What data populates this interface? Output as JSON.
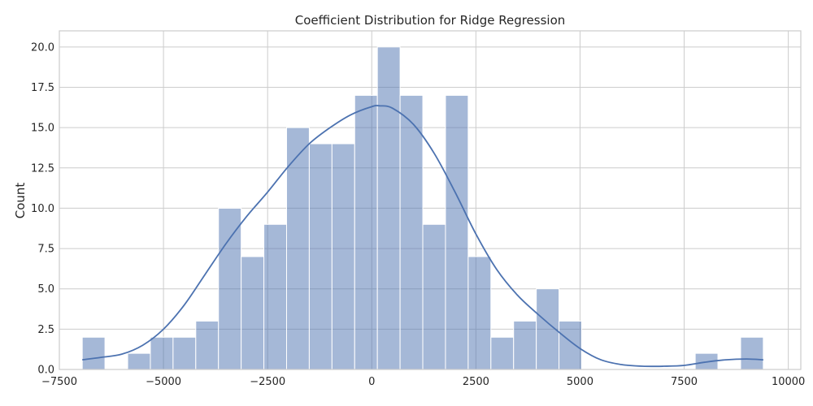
{
  "chart_data": {
    "type": "bar",
    "subtype": "histogram_with_kde",
    "title": "Coefficient Distribution for Ridge Regression",
    "xlabel": "",
    "ylabel": "Count",
    "xlim": [
      -7500,
      10300
    ],
    "ylim": [
      0,
      21
    ],
    "grid": true,
    "bar_color": "#4c72b0",
    "line_color": "#4c72b0",
    "x_ticks": [
      {
        "value": -7500,
        "label": "−7500"
      },
      {
        "value": -5000,
        "label": "−5000"
      },
      {
        "value": -2500,
        "label": "−2500"
      },
      {
        "value": 0,
        "label": "0"
      },
      {
        "value": 2500,
        "label": "2500"
      },
      {
        "value": 5000,
        "label": "5000"
      },
      {
        "value": 7500,
        "label": "7500"
      },
      {
        "value": 10000,
        "label": "10000"
      }
    ],
    "y_ticks": [
      {
        "value": 0,
        "label": "0.0"
      },
      {
        "value": 2.5,
        "label": "2.5"
      },
      {
        "value": 5,
        "label": "5.0"
      },
      {
        "value": 7.5,
        "label": "7.5"
      },
      {
        "value": 10,
        "label": "10.0"
      },
      {
        "value": 12.5,
        "label": "12.5"
      },
      {
        "value": 15,
        "label": "15.0"
      },
      {
        "value": 17.5,
        "label": "17.5"
      },
      {
        "value": 20,
        "label": "20.0"
      }
    ],
    "bins": [
      {
        "start": -6950,
        "end": -6405,
        "count": 2
      },
      {
        "start": -6405,
        "end": -5860,
        "count": 0
      },
      {
        "start": -5860,
        "end": -5315,
        "count": 1
      },
      {
        "start": -5315,
        "end": -4770,
        "count": 2
      },
      {
        "start": -4770,
        "end": -4225,
        "count": 2
      },
      {
        "start": -4225,
        "end": -3680,
        "count": 3
      },
      {
        "start": -3680,
        "end": -3135,
        "count": 10
      },
      {
        "start": -3135,
        "end": -2590,
        "count": 7
      },
      {
        "start": -2590,
        "end": -2045,
        "count": 9
      },
      {
        "start": -2045,
        "end": -1500,
        "count": 15
      },
      {
        "start": -1500,
        "end": -955,
        "count": 14
      },
      {
        "start": -955,
        "end": -410,
        "count": 14
      },
      {
        "start": -410,
        "end": 135,
        "count": 17
      },
      {
        "start": 135,
        "end": 680,
        "count": 20
      },
      {
        "start": 680,
        "end": 1225,
        "count": 17
      },
      {
        "start": 1225,
        "end": 1770,
        "count": 9
      },
      {
        "start": 1770,
        "end": 2315,
        "count": 17
      },
      {
        "start": 2315,
        "end": 2860,
        "count": 7
      },
      {
        "start": 2860,
        "end": 3405,
        "count": 2
      },
      {
        "start": 3405,
        "end": 3950,
        "count": 3
      },
      {
        "start": 3950,
        "end": 4495,
        "count": 5
      },
      {
        "start": 4495,
        "end": 5040,
        "count": 3
      },
      {
        "start": 5040,
        "end": 5585,
        "count": 0
      },
      {
        "start": 5585,
        "end": 6130,
        "count": 0
      },
      {
        "start": 6130,
        "end": 6675,
        "count": 0
      },
      {
        "start": 6675,
        "end": 7220,
        "count": 0
      },
      {
        "start": 7220,
        "end": 7765,
        "count": 0
      },
      {
        "start": 7765,
        "end": 8310,
        "count": 1
      },
      {
        "start": 8310,
        "end": 8855,
        "count": 0
      },
      {
        "start": 8855,
        "end": 9400,
        "count": 2
      }
    ],
    "kde": {
      "x": [
        -6950,
        -6500,
        -6000,
        -5500,
        -5000,
        -4500,
        -4000,
        -3500,
        -3000,
        -2500,
        -2000,
        -1500,
        -1000,
        -500,
        0,
        200,
        500,
        1000,
        1500,
        2000,
        2500,
        3000,
        3500,
        4000,
        4500,
        5000,
        5500,
        6000,
        6500,
        7000,
        7500,
        8000,
        8500,
        9000,
        9400
      ],
      "y": [
        0.6,
        0.75,
        0.95,
        1.5,
        2.5,
        4.0,
        5.9,
        7.8,
        9.5,
        11.0,
        12.6,
        14.0,
        15.0,
        15.8,
        16.3,
        16.35,
        16.2,
        15.2,
        13.4,
        11.0,
        8.4,
        6.2,
        4.6,
        3.4,
        2.3,
        1.3,
        0.6,
        0.3,
        0.2,
        0.2,
        0.25,
        0.45,
        0.6,
        0.65,
        0.6
      ]
    }
  }
}
